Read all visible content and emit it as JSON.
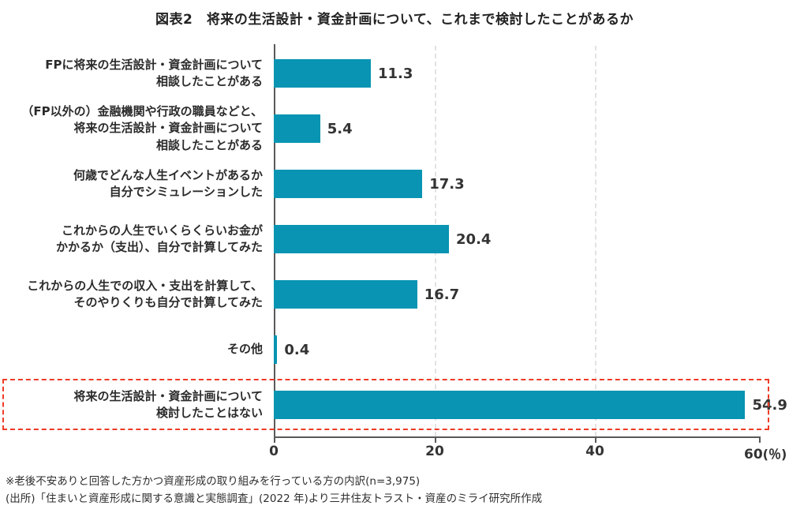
{
  "title": "図表2　将来の生活設計・資金計画について、これまで検討したことがあるか",
  "chart_data": {
    "type": "bar",
    "orientation": "horizontal",
    "title": "図表2　将来の生活設計・資金計画について、これまで検討したことがあるか",
    "categories": [
      "FPに将来の生活設計・資金計画について\n相談したことがある",
      "（FP以外の）金融機関や行政の職員などと、\n将来の生活設計・資金計画について\n相談したことがある",
      "何歳でどんな人生イベントがあるか\n自分でシミュレーションした",
      "これからの人生でいくらくらいお金が\nかかるか（支出）、自分で計算してみた",
      "これからの人生での収入・支出を計算して、\nそのやりくりも自分で計算してみた",
      "その他",
      "将来の生活設計・資金計画について\n検討したことはない"
    ],
    "values": [
      11.3,
      5.4,
      17.3,
      20.4,
      16.7,
      0.4,
      54.9
    ],
    "value_labels": [
      "11.3",
      "5.4",
      "17.3",
      "20.4",
      "16.7",
      "0.4",
      "54.9"
    ],
    "xlim": [
      0,
      60
    ],
    "x_tick_labels": [
      "0",
      "20",
      "40",
      "60"
    ],
    "x_unit": "(％)",
    "gridlines_at": [
      20,
      40
    ],
    "highlighted_index": 6,
    "bar_color": "#0894b2",
    "highlight_border_color": "#ee3b26",
    "legend": "none"
  },
  "footnotes": {
    "line1": "※老後不安ありと回答した方かつ資産形成の取り組みを行っている方の内訳(n=3,975)",
    "line2": "(出所)「住まいと資産形成に関する意識と実態調査」(2022 年)より三井住友トラスト・資産のミライ研究所作成"
  }
}
